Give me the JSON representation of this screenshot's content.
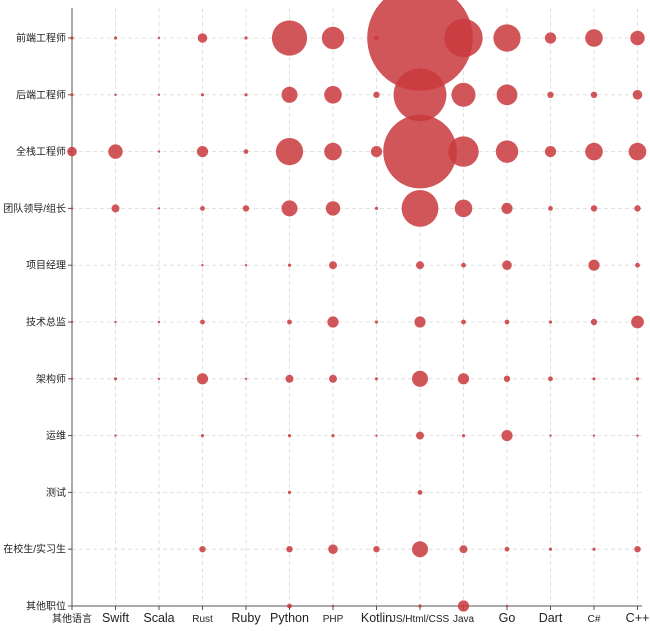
{
  "chart_data": {
    "type": "scatter",
    "subtype": "bubble",
    "title": "",
    "xlabel": "",
    "ylabel": "",
    "grid": true,
    "colors": {
      "bubble": "#c9383d",
      "grid": "#d9d9d9",
      "axis": "#555555"
    },
    "x_categories": [
      "其他语言",
      "Swift",
      "Scala",
      "Rust",
      "Ruby",
      "Python",
      "PHP",
      "Kotlin",
      "JS/Html/CSS",
      "Java",
      "Go",
      "Dart",
      "C#",
      "C++"
    ],
    "y_categories": [
      "前端工程师",
      "后端工程师",
      "全栈工程师",
      "团队领导/组长",
      "项目经理",
      "技术总监",
      "架构师",
      "运维",
      "测试",
      "在校生/实习生",
      "其他职位"
    ],
    "series": [
      {
        "values": [
          [
            2,
            2,
            1,
            6,
            2,
            22,
            14,
            3,
            66,
            24,
            17,
            7,
            11,
            9
          ],
          [
            2,
            1,
            1,
            2,
            2,
            10,
            11,
            4,
            33,
            15,
            13,
            4,
            4,
            6
          ],
          [
            6,
            9,
            1,
            7,
            3,
            17,
            11,
            7,
            46,
            19,
            14,
            7,
            11,
            11
          ],
          [
            1,
            5,
            1,
            3,
            4,
            10,
            9,
            2,
            23,
            11,
            7,
            3,
            4,
            4
          ],
          [
            0,
            0,
            0,
            1,
            1,
            2,
            5,
            0,
            5,
            3,
            6,
            0,
            7,
            3
          ],
          [
            1,
            1,
            1,
            3,
            0,
            3,
            7,
            2,
            7,
            3,
            3,
            2,
            4,
            8
          ],
          [
            1,
            2,
            1,
            7,
            1,
            5,
            5,
            2,
            10,
            7,
            4,
            3,
            2,
            2
          ],
          [
            0,
            1,
            0,
            2,
            0,
            2,
            2,
            1,
            5,
            2,
            7,
            1,
            1,
            1
          ],
          [
            0,
            0,
            0,
            0,
            0,
            2,
            0,
            0,
            3,
            0,
            0,
            0,
            0,
            0
          ],
          [
            0,
            0,
            0,
            4,
            0,
            4,
            6,
            4,
            10,
            5,
            3,
            2,
            2,
            4
          ],
          [
            0,
            0,
            0,
            0,
            0,
            3,
            1,
            0,
            2,
            7,
            1,
            0,
            0,
            0
          ]
        ]
      }
    ]
  }
}
